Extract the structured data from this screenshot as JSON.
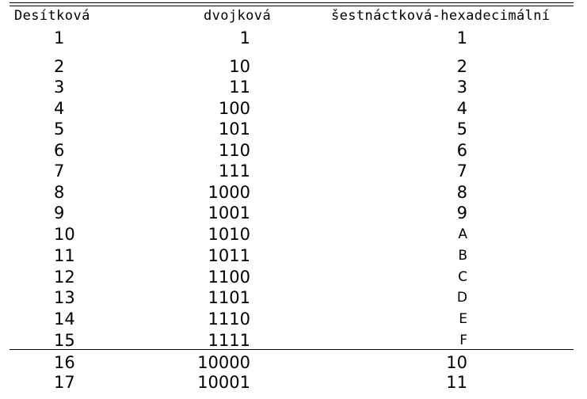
{
  "headers": {
    "decimal": "Desítková",
    "binary": "dvojková",
    "hex": "šestnáctková-hexadecimální"
  },
  "rows": [
    {
      "dec": "1",
      "bin": "1",
      "hex": "1"
    },
    {
      "dec": "2",
      "bin": "10",
      "hex": "2"
    },
    {
      "dec": "3",
      "bin": "11",
      "hex": "3"
    },
    {
      "dec": "4",
      "bin": "100",
      "hex": "4"
    },
    {
      "dec": "5",
      "bin": "101",
      "hex": "5"
    },
    {
      "dec": "6",
      "bin": "110",
      "hex": "6"
    },
    {
      "dec": "7",
      "bin": "111",
      "hex": "7"
    },
    {
      "dec": "8",
      "bin": "1000",
      "hex": "8"
    },
    {
      "dec": "9",
      "bin": "1001",
      "hex": "9"
    },
    {
      "dec": "10",
      "bin": "1010",
      "hex": "A"
    },
    {
      "dec": "11",
      "bin": "1011",
      "hex": "B"
    },
    {
      "dec": "12",
      "bin": "1100",
      "hex": "C"
    },
    {
      "dec": "13",
      "bin": "1101",
      "hex": "D"
    },
    {
      "dec": "14",
      "bin": "1110",
      "hex": "E"
    },
    {
      "dec": "15",
      "bin": "1111",
      "hex": "F"
    },
    {
      "dec": "16",
      "bin": "10000",
      "hex": "10"
    },
    {
      "dec": "17",
      "bin": "10001",
      "hex": "11"
    }
  ]
}
